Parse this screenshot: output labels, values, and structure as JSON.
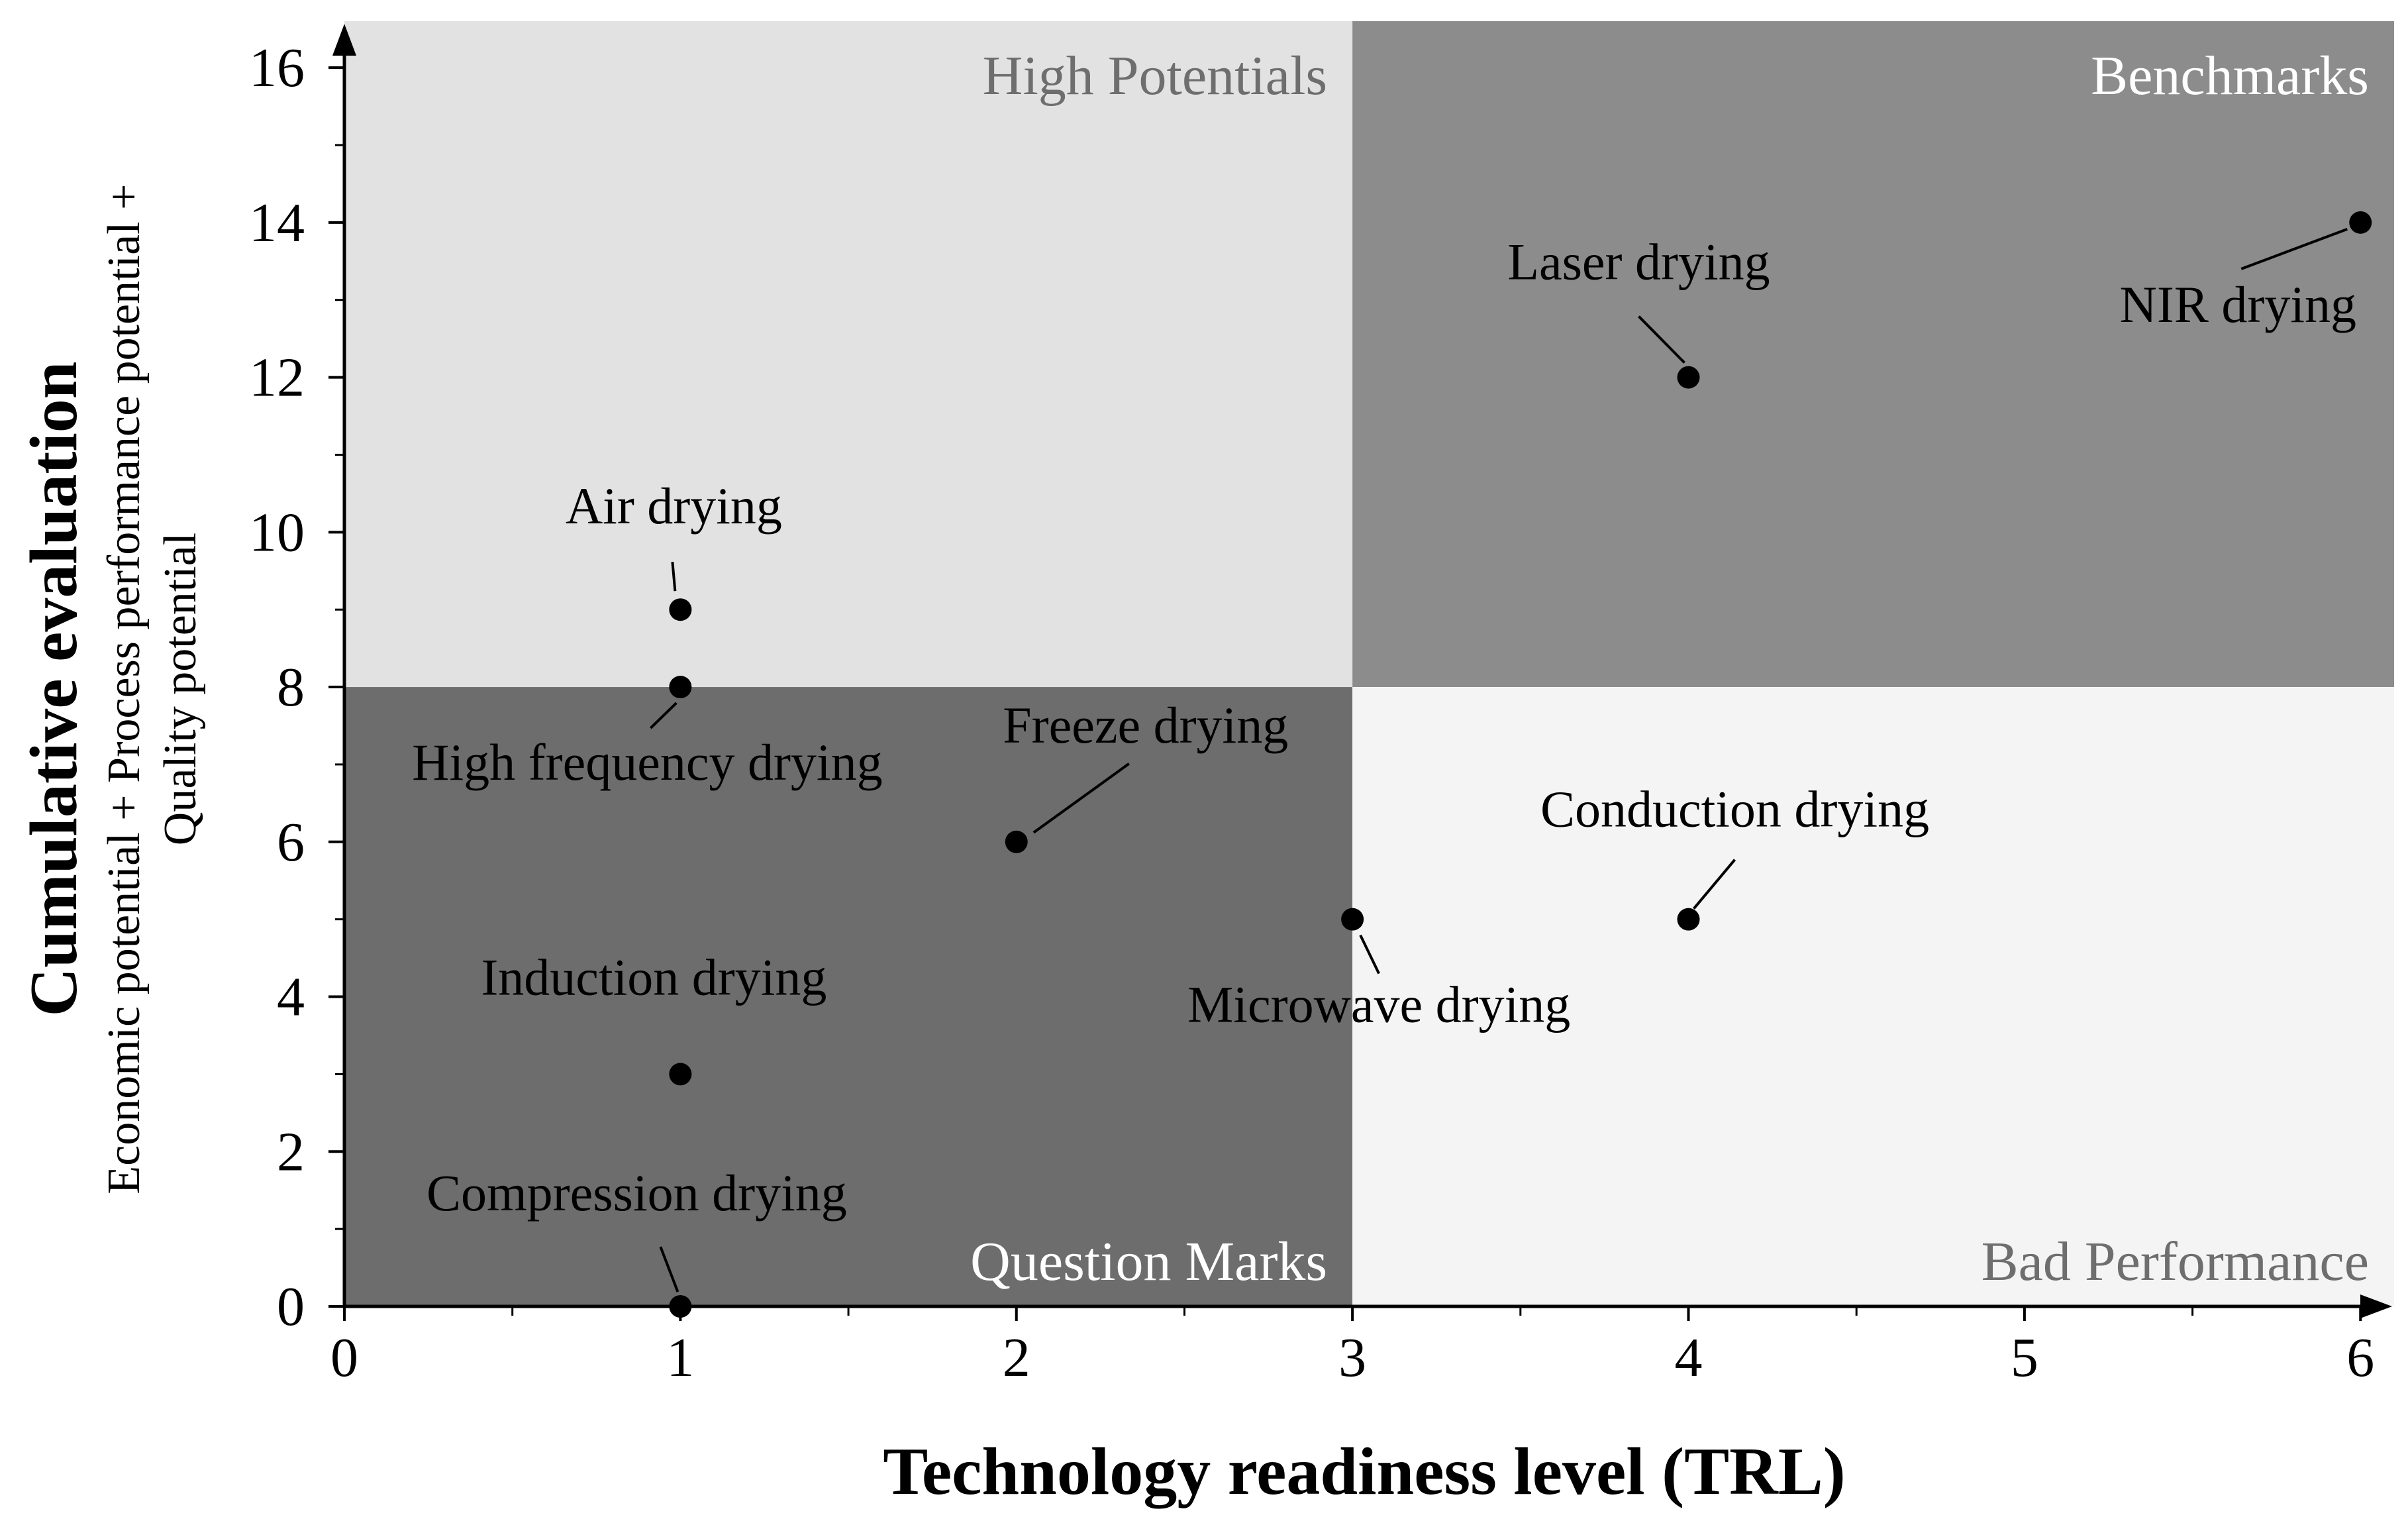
{
  "chart_data": {
    "type": "scatter",
    "xlabel": "Technology readiness level (TRL)",
    "ylabel": "Cumulative evaluation",
    "ylabel_sub": [
      "Economic potential + Process performance potential +",
      "Quality potential"
    ],
    "xlim": [
      0,
      6.1
    ],
    "ylim": [
      0,
      16.6
    ],
    "x_ticks": [
      0,
      1,
      2,
      3,
      4,
      5,
      6
    ],
    "y_ticks": [
      0,
      2,
      4,
      6,
      8,
      10,
      12,
      14,
      16
    ],
    "x_tick_labels": [
      "0",
      "1",
      "2",
      "3",
      "4",
      "5",
      "6"
    ],
    "y_tick_labels": [
      "0",
      "2",
      "4",
      "6",
      "8",
      "10",
      "12",
      "14",
      "16"
    ],
    "grid": false,
    "quadrants": [
      {
        "name": "High Potentials",
        "x": [
          0,
          3
        ],
        "y": [
          8,
          16.6
        ],
        "color": "#e2e2e2",
        "text_color": "#6e6e6e",
        "label_pos": "top-right"
      },
      {
        "name": "Benchmarks",
        "x": [
          3,
          6.1
        ],
        "y": [
          8,
          16.6
        ],
        "color": "#8c8c8c",
        "text_color": "#ffffff",
        "label_pos": "top-right"
      },
      {
        "name": "Question Marks",
        "x": [
          0,
          3
        ],
        "y": [
          0,
          8
        ],
        "color": "#6d6d6d",
        "text_color": "#ffffff",
        "label_pos": "bottom-right"
      },
      {
        "name": "Bad Performance",
        "x": [
          3,
          6.1
        ],
        "y": [
          0,
          8
        ],
        "color": "#f4f4f4",
        "text_color": "#6e6e6e",
        "label_pos": "bottom-right"
      }
    ],
    "points": [
      {
        "name": "Air drying",
        "x": 1,
        "y": 9
      },
      {
        "name": "High frequency drying",
        "x": 1,
        "y": 8
      },
      {
        "name": "Induction drying",
        "x": 1,
        "y": 3
      },
      {
        "name": "Compression drying",
        "x": 1,
        "y": 0
      },
      {
        "name": "Freeze drying",
        "x": 2,
        "y": 6
      },
      {
        "name": "Microwave drying",
        "x": 3,
        "y": 5
      },
      {
        "name": "Conduction drying",
        "x": 4,
        "y": 5
      },
      {
        "name": "Laser drying",
        "x": 4,
        "y": 12
      },
      {
        "name": "NIR drying",
        "x": 6,
        "y": 14
      }
    ],
    "colors": {
      "point": "#000000",
      "axis": "#000000"
    }
  }
}
